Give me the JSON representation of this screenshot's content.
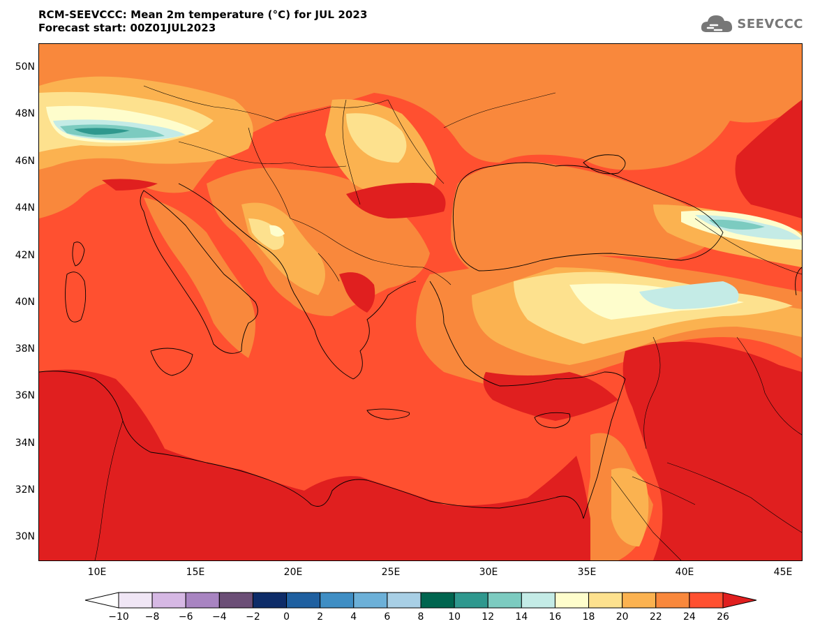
{
  "header": {
    "title_line1": "RCM-SEEVCCC: Mean 2m temperature (°C) for JUL 2023",
    "title_line2": "Forecast start: 00Z01JUL2023"
  },
  "logo": {
    "text": "SEEVCCC",
    "icon": "cloud-logo-icon"
  },
  "map": {
    "lat_labels": [
      "50N",
      "48N",
      "46N",
      "44N",
      "42N",
      "40N",
      "38N",
      "36N",
      "34N",
      "32N",
      "30N"
    ],
    "lon_labels": [
      "10E",
      "15E",
      "20E",
      "25E",
      "30E",
      "35E",
      "40E",
      "45E"
    ],
    "colors": {
      "t26": "#e01f1f",
      "t24": "#ff5030",
      "t22": "#f9883c",
      "t20": "#fbb250",
      "t18": "#fde18e",
      "t16": "#fefdcc",
      "t14": "#c4ebe6",
      "t12": "#7ccbc0",
      "t10": "#2f988e",
      "border": "#000000"
    }
  },
  "colorbar": {
    "labels": [
      "−10",
      "−8",
      "−6",
      "−4",
      "−2",
      "0",
      "2",
      "4",
      "6",
      "8",
      "10",
      "12",
      "14",
      "16",
      "18",
      "20",
      "22",
      "24",
      "26"
    ],
    "colors": [
      "#f0e6f5",
      "#d6b8e4",
      "#a884c1",
      "#6b4e76",
      "#0e2c68",
      "#1f60a0",
      "#3f8ec4",
      "#6cb0d8",
      "#a8cfe5",
      "#00654f",
      "#2f988e",
      "#7ccbc0",
      "#c4ebe6",
      "#fefdcc",
      "#fde18e",
      "#fbb250",
      "#f9883c",
      "#ff5030"
    ],
    "over_color": "#e01f1f",
    "under_color": "#ffffff"
  }
}
